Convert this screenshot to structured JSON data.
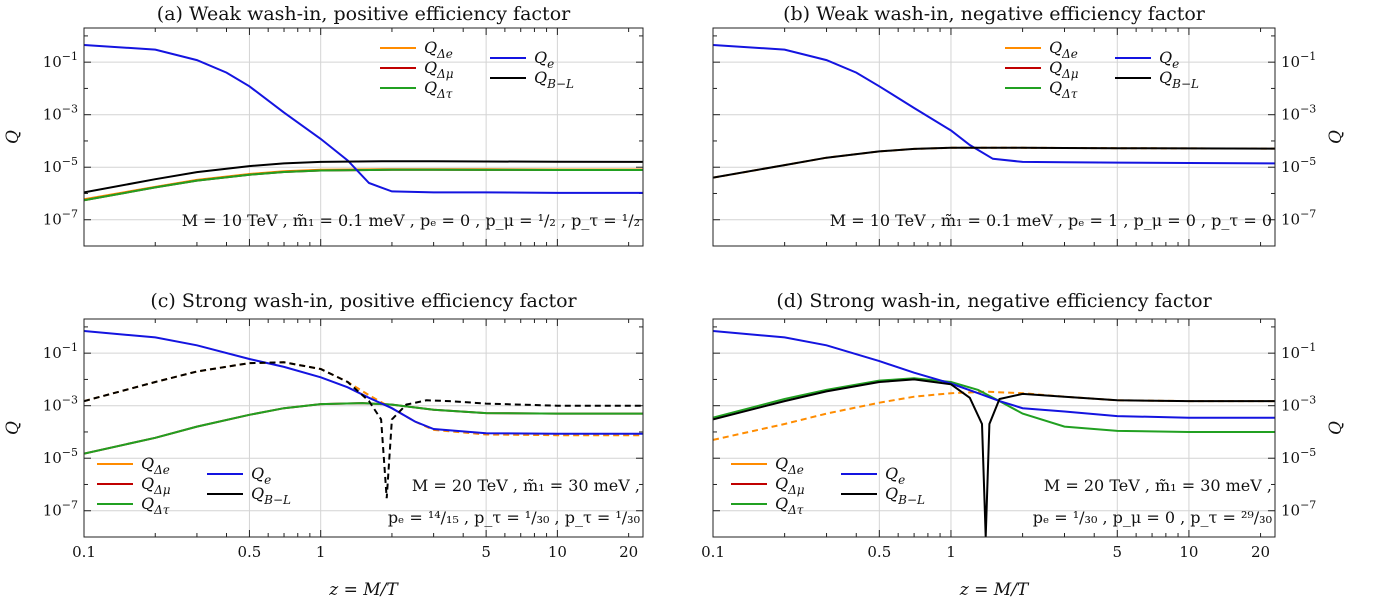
{
  "chart_data": [
    {
      "type": "line",
      "title": "(a) Weak wash-in, positive efficiency factor",
      "xlabel": "",
      "ylabel": "Q",
      "xscale": "log",
      "yscale": "log",
      "xlim": [
        0.1,
        23
      ],
      "ylim": [
        1e-08,
        2
      ],
      "grid": true,
      "legend_position": "top-center",
      "annotation": "M = 10 TeV , m̃₁ = 0.1 meV , pₑ = 0 , p_μ = ¹/₂ , p_τ = ¹/₂",
      "series": [
        {
          "name": "QΔe",
          "color": "#ff8c00",
          "dashed": false,
          "x": [
            0.1,
            0.2,
            0.3,
            0.5,
            0.7,
            1,
            2,
            3,
            5,
            10,
            23
          ],
          "y": [
            6e-07,
            1.8e-06,
            3.3e-06,
            5.5e-06,
            7e-06,
            8e-06,
            8.4e-06,
            8.4e-06,
            8.3e-06,
            8.2e-06,
            8.2e-06
          ]
        },
        {
          "name": "QΔμ",
          "color": "#c00000",
          "dashed": false,
          "x": [
            0.1,
            0.2,
            0.3,
            0.5,
            0.7,
            1,
            2,
            3,
            5,
            10,
            23
          ],
          "y": [
            5.5e-07,
            1.7e-06,
            3.1e-06,
            5.2e-06,
            6.6e-06,
            7.5e-06,
            8e-06,
            8e-06,
            7.9e-06,
            7.8e-06,
            7.8e-06
          ]
        },
        {
          "name": "QΔτ",
          "color": "#21a021",
          "dashed": false,
          "x": [
            0.1,
            0.2,
            0.3,
            0.5,
            0.7,
            1,
            2,
            3,
            5,
            10,
            23
          ],
          "y": [
            5.5e-07,
            1.7e-06,
            3.1e-06,
            5.2e-06,
            6.6e-06,
            7.5e-06,
            8e-06,
            8e-06,
            7.9e-06,
            7.8e-06,
            7.8e-06
          ]
        },
        {
          "name": "Qe",
          "color": "#1414e0",
          "dashed": false,
          "x": [
            0.1,
            0.2,
            0.3,
            0.4,
            0.5,
            0.7,
            1,
            1.3,
            1.6,
            2,
            3,
            5,
            10,
            23
          ],
          "y": [
            0.45,
            0.3,
            0.12,
            0.04,
            0.012,
            0.0012,
            0.00012,
            1.8e-05,
            2.5e-06,
            1.2e-06,
            1.1e-06,
            1.1e-06,
            1.05e-06,
            1.05e-06
          ]
        },
        {
          "name": "QB−L",
          "color": "#000000",
          "dashed": false,
          "x": [
            0.1,
            0.2,
            0.3,
            0.5,
            0.7,
            1,
            2,
            3,
            5,
            10,
            23
          ],
          "y": [
            1.1e-06,
            3.5e-06,
            6.5e-06,
            1.1e-05,
            1.4e-05,
            1.6e-05,
            1.7e-05,
            1.7e-05,
            1.65e-05,
            1.62e-05,
            1.6e-05
          ]
        }
      ]
    },
    {
      "type": "line",
      "title": "(b) Weak wash-in, negative efficiency factor",
      "xlabel": "",
      "ylabel": "Q",
      "xscale": "log",
      "yscale": "log",
      "xlim": [
        0.1,
        23
      ],
      "ylim": [
        1e-08,
        2
      ],
      "grid": true,
      "legend_position": "top-center",
      "annotation": "M = 10 TeV , m̃₁ = 0.1 meV , pₑ = 1 , p_μ = 0 , p_τ = 0",
      "series": [
        {
          "name": "QΔe",
          "color": "#ff8c00",
          "dashed": true,
          "x": [
            0.1,
            0.2,
            0.3,
            0.5,
            0.7,
            1,
            2,
            3,
            5,
            10,
            23
          ],
          "y": [
            4e-06,
            1.2e-05,
            2.3e-05,
            4e-05,
            5e-05,
            5.5e-05,
            5.5e-05,
            5.4e-05,
            5.3e-05,
            5.2e-05,
            5.1e-05
          ]
        },
        {
          "name": "QΔμ",
          "color": "#c00000",
          "dashed": false,
          "x": [],
          "y": []
        },
        {
          "name": "QΔτ",
          "color": "#21a021",
          "dashed": false,
          "x": [],
          "y": []
        },
        {
          "name": "Qe",
          "color": "#1414e0",
          "dashed": false,
          "x": [
            0.1,
            0.2,
            0.3,
            0.4,
            0.5,
            0.7,
            1,
            1.2,
            1.5,
            2,
            3,
            5,
            10,
            23
          ],
          "y": [
            0.45,
            0.3,
            0.12,
            0.04,
            0.012,
            0.0018,
            0.00025,
            7e-05,
            2.1e-05,
            1.6e-05,
            1.55e-05,
            1.5e-05,
            1.45e-05,
            1.4e-05
          ]
        },
        {
          "name": "QB−L",
          "color": "#000000",
          "dashed": false,
          "x": [
            0.1,
            0.2,
            0.3,
            0.5,
            0.7,
            1,
            2,
            3,
            5,
            10,
            23
          ],
          "y": [
            4e-06,
            1.2e-05,
            2.3e-05,
            4e-05,
            5e-05,
            5.5e-05,
            5.5e-05,
            5.4e-05,
            5.3e-05,
            5.2e-05,
            5.1e-05
          ]
        }
      ]
    },
    {
      "type": "line",
      "title": "(c) Strong wash-in, positive efficiency factor",
      "xlabel": "z = M/T",
      "ylabel": "Q",
      "xscale": "log",
      "yscale": "log",
      "xlim": [
        0.1,
        23
      ],
      "ylim": [
        1e-08,
        2
      ],
      "grid": true,
      "legend_position": "bottom-left",
      "annotation": "M = 20 TeV , m̃₁ = 30 meV , pₑ = ¹⁴/₁₅ , p_τ = ¹/₃₀ , p_τ = ¹/₃₀",
      "series": [
        {
          "name": "QΔe",
          "color": "#ff8c00",
          "dashed": true,
          "x": [
            0.1,
            0.2,
            0.3,
            0.5,
            0.7,
            1,
            1.3,
            1.6,
            2,
            2.5,
            3,
            5,
            10,
            23
          ],
          "y": [
            0.0015,
            0.008,
            0.02,
            0.042,
            0.045,
            0.025,
            0.008,
            0.0025,
            0.0008,
            0.00025,
            0.00012,
            8e-05,
            7.5e-05,
            7.5e-05
          ]
        },
        {
          "name": "QΔμ",
          "color": "#c00000",
          "dashed": false,
          "x": [
            0.1,
            0.2,
            0.3,
            0.5,
            0.7,
            1,
            1.5,
            2,
            3,
            5,
            10,
            23
          ],
          "y": [
            1.5e-05,
            6e-05,
            0.00016,
            0.00045,
            0.0008,
            0.00115,
            0.00125,
            0.0011,
            0.0007,
            0.00052,
            0.0005,
            0.0005
          ]
        },
        {
          "name": "QΔτ",
          "color": "#21a021",
          "dashed": false,
          "x": [
            0.1,
            0.2,
            0.3,
            0.5,
            0.7,
            1,
            1.5,
            2,
            3,
            5,
            10,
            23
          ],
          "y": [
            1.5e-05,
            6e-05,
            0.00016,
            0.00045,
            0.0008,
            0.00115,
            0.00125,
            0.0011,
            0.0007,
            0.00052,
            0.0005,
            0.0005
          ]
        },
        {
          "name": "Qe",
          "color": "#1414e0",
          "dashed": false,
          "x": [
            0.1,
            0.2,
            0.3,
            0.5,
            0.7,
            1,
            1.3,
            1.6,
            2,
            2.5,
            3,
            5,
            10,
            23
          ],
          "y": [
            0.7,
            0.4,
            0.2,
            0.06,
            0.03,
            0.012,
            0.005,
            0.002,
            0.0008,
            0.00025,
            0.00013,
            9e-05,
            8.5e-05,
            8.5e-05
          ]
        },
        {
          "name": "QB−L",
          "color": "#000000",
          "dashed": true,
          "sign_change": 1.9,
          "x": [
            0.1,
            0.2,
            0.3,
            0.5,
            0.7,
            1,
            1.3,
            1.6,
            1.8,
            1.9,
            2,
            2.3,
            2.8,
            3.5,
            5,
            10,
            23
          ],
          "y": [
            0.0015,
            0.008,
            0.02,
            0.042,
            0.045,
            0.025,
            0.008,
            0.0015,
            0.0003,
            3e-07,
            0.0003,
            0.0011,
            0.0016,
            0.0015,
            0.0012,
            0.001,
            0.001
          ]
        }
      ]
    },
    {
      "type": "line",
      "title": "(d) Strong wash-in, negative efficiency factor",
      "xlabel": "z = M/T",
      "ylabel": "Q",
      "xscale": "log",
      "yscale": "log",
      "xlim": [
        0.1,
        23
      ],
      "ylim": [
        1e-08,
        2
      ],
      "grid": true,
      "legend_position": "bottom-left",
      "annotation": "M = 20 TeV , m̃₁ = 30 meV , pₑ = ¹/₃₀ , p_μ = 0 , p_τ = ²⁹/₃₀",
      "series": [
        {
          "name": "QΔe",
          "color": "#ff8c00",
          "dashed": true,
          "x": [
            0.1,
            0.2,
            0.3,
            0.5,
            0.7,
            1,
            1.4,
            2,
            3,
            5,
            10,
            23
          ],
          "y": [
            5e-05,
            0.0002,
            0.0005,
            0.0013,
            0.0022,
            0.003,
            0.0034,
            0.003,
            0.0022,
            0.0016,
            0.0015,
            0.0015
          ]
        },
        {
          "name": "QΔμ",
          "color": "#c00000",
          "dashed": false,
          "x": [],
          "y": []
        },
        {
          "name": "QΔτ",
          "color": "#21a021",
          "dashed": false,
          "x": [
            0.1,
            0.2,
            0.3,
            0.5,
            0.7,
            1,
            1.3,
            1.6,
            2,
            3,
            5,
            10,
            23
          ],
          "y": [
            0.00035,
            0.0018,
            0.004,
            0.009,
            0.011,
            0.008,
            0.004,
            0.0015,
            0.0005,
            0.00016,
            0.00011,
            0.0001,
            0.0001
          ]
        },
        {
          "name": "Qe",
          "color": "#1414e0",
          "dashed": false,
          "x": [
            0.1,
            0.2,
            0.3,
            0.5,
            0.7,
            1,
            1.3,
            1.6,
            2,
            3,
            5,
            10,
            23
          ],
          "y": [
            0.7,
            0.4,
            0.2,
            0.05,
            0.018,
            0.007,
            0.003,
            0.0015,
            0.0008,
            0.0006,
            0.0004,
            0.00035,
            0.00035
          ]
        },
        {
          "name": "QB−L",
          "color": "#000000",
          "dashed": false,
          "sign_change": 1.4,
          "x": [
            0.1,
            0.2,
            0.3,
            0.5,
            0.7,
            1,
            1.2,
            1.35,
            1.4,
            1.45,
            1.6,
            2,
            3,
            5,
            10,
            23
          ],
          "y": [
            0.0003,
            0.0015,
            0.0035,
            0.008,
            0.01,
            0.0065,
            0.002,
            0.0002,
            1e-08,
            0.0002,
            0.0018,
            0.0028,
            0.0022,
            0.0016,
            0.0015,
            0.0015
          ]
        }
      ]
    }
  ],
  "labels": {
    "legend_names": [
      "QΔe",
      "QΔμ",
      "QΔτ",
      "Qe",
      "QB−L"
    ]
  }
}
